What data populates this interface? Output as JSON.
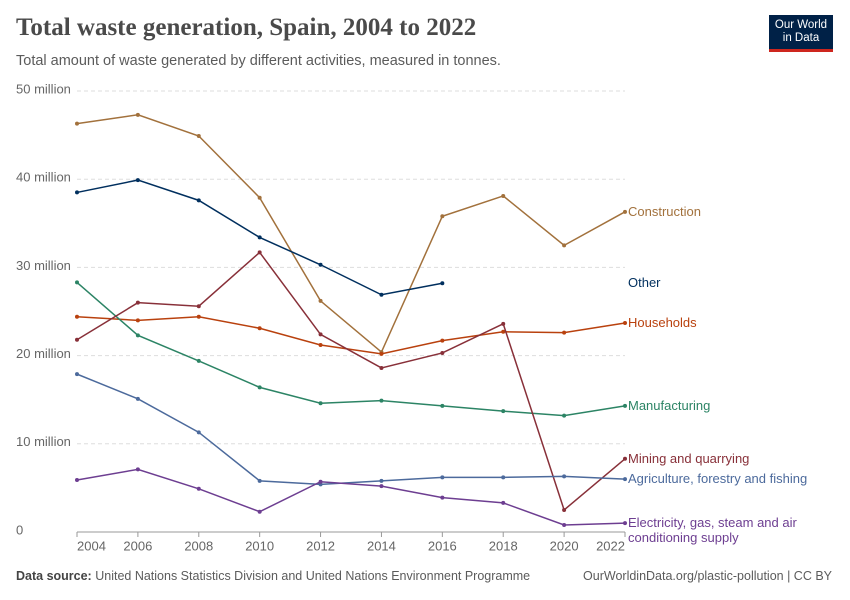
{
  "chart_data": {
    "type": "line",
    "title": "Total waste generation, Spain, 2004 to 2022",
    "subtitle": "Total amount of waste generated by different activities, measured in tonnes.",
    "x": [
      2004,
      2006,
      2008,
      2010,
      2012,
      2014,
      2016,
      2018,
      2020,
      2022
    ],
    "xlim": [
      2004,
      2022
    ],
    "xticks": [
      2004,
      2006,
      2008,
      2010,
      2012,
      2014,
      2016,
      2018,
      2020,
      2022
    ],
    "ylim": [
      0,
      50000000
    ],
    "yticks": [
      {
        "value": 0,
        "label": "0"
      },
      {
        "value": 10000000,
        "label": "10 million"
      },
      {
        "value": 20000000,
        "label": "20 million"
      },
      {
        "value": 30000000,
        "label": "30 million"
      },
      {
        "value": 40000000,
        "label": "40 million"
      },
      {
        "value": 50000000,
        "label": "50 million"
      }
    ],
    "grid": true,
    "series": [
      {
        "name": "Construction",
        "color": "#a2713c",
        "values": [
          46300000,
          47300000,
          44900000,
          37900000,
          26200000,
          20400000,
          35800000,
          38100000,
          32500000,
          36300000
        ]
      },
      {
        "name": "Other",
        "color": "#002f5e",
        "values": [
          38500000,
          39900000,
          37600000,
          33400000,
          30300000,
          26900000,
          28200000,
          null,
          null,
          null
        ]
      },
      {
        "name": "Households",
        "color": "#b9410e",
        "values": [
          24400000,
          24000000,
          24400000,
          23100000,
          21200000,
          20200000,
          21700000,
          22700000,
          22600000,
          23700000
        ]
      },
      {
        "name": "Manufacturing",
        "color": "#2c8465",
        "values": [
          28300000,
          22300000,
          19400000,
          16400000,
          14600000,
          14900000,
          14300000,
          13700000,
          13200000,
          14300000
        ]
      },
      {
        "name": "Mining and quarrying",
        "color": "#883039",
        "values": [
          21800000,
          26000000,
          25600000,
          31700000,
          22400000,
          18600000,
          20300000,
          23600000,
          2500000,
          8300000
        ]
      },
      {
        "name": "Agriculture, forestry and fishing",
        "color": "#4c6a9c",
        "values": [
          17900000,
          15100000,
          11300000,
          5800000,
          5400000,
          5800000,
          6200000,
          6200000,
          6300000,
          6000000
        ]
      },
      {
        "name": "Electricity, gas, steam and air conditioning supply",
        "color": "#6d3e91",
        "values": [
          5900000,
          7100000,
          4900000,
          2300000,
          5700000,
          5200000,
          3900000,
          3300000,
          800000,
          1000000
        ]
      }
    ],
    "source": {
      "label": "Data source:",
      "text": "United Nations Statistics Division and United Nations Environment Programme"
    },
    "url": "OurWorldinData.org/plastic-pollution | CC BY"
  },
  "logo": {
    "line1": "Our World",
    "line2": "in Data"
  }
}
